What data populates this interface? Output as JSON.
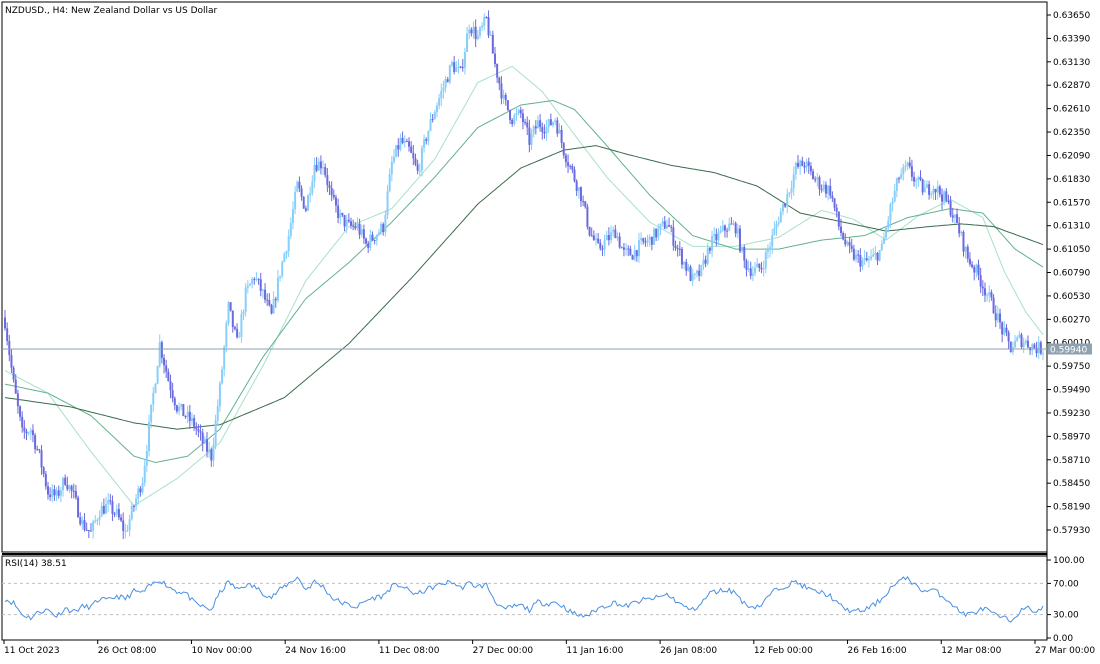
{
  "chart_title": "NZDUSD., H4:  New Zealand Dollar vs US Dollar",
  "current_price_label": "0.59940",
  "rsi_label": "RSI(14) 38.51",
  "colors": {
    "bull_candle": "#87cefa",
    "bear_candle": "#6a6ae0",
    "ma_fast": "#a8e0c8",
    "ma_mid": "#63b08e",
    "ma_slow": "#3a6b4c",
    "rsi_line": "#4a90e2",
    "price_line": "#8fa2b0",
    "axis": "#000000"
  },
  "chart_data": [
    {
      "type": "candlestick",
      "title": "NZDUSD., H4:  New Zealand Dollar vs US Dollar",
      "y_ticks": [
        "0.63650",
        "0.63390",
        "0.63130",
        "0.62870",
        "0.62610",
        "0.62350",
        "0.62090",
        "0.61830",
        "0.61570",
        "0.61310",
        "0.61050",
        "0.60790",
        "0.60530",
        "0.60270",
        "0.60010",
        "0.59750",
        "0.59490",
        "0.59230",
        "0.58970",
        "0.58710",
        "0.58450",
        "0.58190",
        "0.57930"
      ],
      "ylim": [
        0.577,
        0.6376
      ],
      "x_tick_labels": [
        "11 Oct 2023",
        "26 Oct 08:00",
        "10 Nov 00:00",
        "24 Nov 16:00",
        "11 Dec 08:00",
        "27 Dec 00:00",
        "11 Jan 16:00",
        "26 Jan 08:00",
        "12 Feb 00:00",
        "26 Feb 16:00",
        "12 Mar 08:00",
        "27 Mar 00:00"
      ],
      "current_price": 0.5994,
      "close_path": [
        [
          0,
          0.6025
        ],
        [
          4,
          0.5955
        ],
        [
          8,
          0.59
        ],
        [
          12,
          0.5905
        ],
        [
          16,
          0.5875
        ],
        [
          20,
          0.5835
        ],
        [
          24,
          0.583
        ],
        [
          28,
          0.585
        ],
        [
          32,
          0.583
        ],
        [
          36,
          0.58
        ],
        [
          40,
          0.579
        ],
        [
          44,
          0.5815
        ],
        [
          48,
          0.582
        ],
        [
          52,
          0.581
        ],
        [
          56,
          0.579
        ],
        [
          60,
          0.582
        ],
        [
          64,
          0.585
        ],
        [
          68,
          0.5925
        ],
        [
          72,
          0.6
        ],
        [
          76,
          0.596
        ],
        [
          80,
          0.593
        ],
        [
          84,
          0.592
        ],
        [
          88,
          0.591
        ],
        [
          92,
          0.589
        ],
        [
          96,
          0.5875
        ],
        [
          100,
          0.595
        ],
        [
          104,
          0.604
        ],
        [
          108,
          0.6
        ],
        [
          112,
          0.6055
        ],
        [
          116,
          0.6075
        ],
        [
          120,
          0.6055
        ],
        [
          124,
          0.603
        ],
        [
          128,
          0.608
        ],
        [
          132,
          0.612
        ],
        [
          136,
          0.6175
        ],
        [
          140,
          0.615
        ],
        [
          144,
          0.62
        ],
        [
          148,
          0.62
        ],
        [
          152,
          0.616
        ],
        [
          156,
          0.614
        ],
        [
          160,
          0.613
        ],
        [
          164,
          0.613
        ],
        [
          168,
          0.611
        ],
        [
          172,
          0.612
        ],
        [
          176,
          0.613
        ],
        [
          180,
          0.62
        ],
        [
          184,
          0.6225
        ],
        [
          188,
          0.6215
        ],
        [
          192,
          0.619
        ],
        [
          196,
          0.623
        ],
        [
          200,
          0.626
        ],
        [
          204,
          0.6285
        ],
        [
          208,
          0.631
        ],
        [
          212,
          0.63
        ],
        [
          216,
          0.6355
        ],
        [
          220,
          0.634
        ],
        [
          224,
          0.636
        ],
        [
          228,
          0.631
        ],
        [
          232,
          0.627
        ],
        [
          236,
          0.625
        ],
        [
          240,
          0.6255
        ],
        [
          244,
          0.6225
        ],
        [
          248,
          0.6245
        ],
        [
          252,
          0.624
        ],
        [
          256,
          0.625
        ],
        [
          260,
          0.6215
        ],
        [
          264,
          0.619
        ],
        [
          268,
          0.6165
        ],
        [
          272,
          0.6125
        ],
        [
          276,
          0.6105
        ],
        [
          280,
          0.6115
        ],
        [
          284,
          0.6125
        ],
        [
          288,
          0.61
        ],
        [
          292,
          0.61
        ],
        [
          296,
          0.611
        ],
        [
          300,
          0.6115
        ],
        [
          304,
          0.6125
        ],
        [
          308,
          0.6135
        ],
        [
          312,
          0.611
        ],
        [
          316,
          0.609
        ],
        [
          320,
          0.607
        ],
        [
          324,
          0.608
        ],
        [
          328,
          0.611
        ],
        [
          332,
          0.612
        ],
        [
          336,
          0.613
        ],
        [
          340,
          0.613
        ],
        [
          344,
          0.609
        ],
        [
          348,
          0.608
        ],
        [
          352,
          0.6085
        ],
        [
          356,
          0.611
        ],
        [
          360,
          0.614
        ],
        [
          364,
          0.6165
        ],
        [
          368,
          0.6195
        ],
        [
          372,
          0.62
        ],
        [
          376,
          0.6185
        ],
        [
          380,
          0.6175
        ],
        [
          384,
          0.617
        ],
        [
          388,
          0.613
        ],
        [
          392,
          0.6105
        ],
        [
          396,
          0.6095
        ],
        [
          400,
          0.609
        ],
        [
          404,
          0.6095
        ],
        [
          408,
          0.6105
        ],
        [
          412,
          0.615
        ],
        [
          416,
          0.6185
        ],
        [
          420,
          0.6195
        ],
        [
          424,
          0.618
        ],
        [
          428,
          0.617
        ],
        [
          432,
          0.6175
        ],
        [
          436,
          0.6165
        ],
        [
          440,
          0.615
        ],
        [
          444,
          0.6125
        ],
        [
          448,
          0.6095
        ],
        [
          452,
          0.608
        ],
        [
          456,
          0.606
        ],
        [
          460,
          0.604
        ],
        [
          464,
          0.6015
        ],
        [
          468,
          0.5995
        ],
        [
          472,
          0.6005
        ],
        [
          476,
          0.6
        ],
        [
          480,
          0.5995
        ],
        [
          483,
          0.5994
        ]
      ],
      "ma_fast": [
        [
          0,
          0.597
        ],
        [
          20,
          0.5945
        ],
        [
          40,
          0.588
        ],
        [
          60,
          0.582
        ],
        [
          80,
          0.585
        ],
        [
          100,
          0.589
        ],
        [
          120,
          0.5975
        ],
        [
          140,
          0.607
        ],
        [
          160,
          0.613
        ],
        [
          180,
          0.615
        ],
        [
          200,
          0.6205
        ],
        [
          220,
          0.629
        ],
        [
          236,
          0.6308
        ],
        [
          250,
          0.628
        ],
        [
          265,
          0.6232
        ],
        [
          280,
          0.6185
        ],
        [
          300,
          0.6135
        ],
        [
          320,
          0.6108
        ],
        [
          340,
          0.6108
        ],
        [
          360,
          0.6118
        ],
        [
          380,
          0.6148
        ],
        [
          395,
          0.6138
        ],
        [
          410,
          0.6115
        ],
        [
          425,
          0.6142
        ],
        [
          440,
          0.616
        ],
        [
          455,
          0.614
        ],
        [
          465,
          0.608
        ],
        [
          475,
          0.6035
        ],
        [
          483,
          0.601
        ]
      ],
      "ma_mid": [
        [
          0,
          0.5955
        ],
        [
          20,
          0.5945
        ],
        [
          40,
          0.592
        ],
        [
          60,
          0.5875
        ],
        [
          70,
          0.5868
        ],
        [
          85,
          0.5875
        ],
        [
          100,
          0.5905
        ],
        [
          120,
          0.5985
        ],
        [
          140,
          0.605
        ],
        [
          160,
          0.609
        ],
        [
          180,
          0.6135
        ],
        [
          200,
          0.6185
        ],
        [
          220,
          0.624
        ],
        [
          240,
          0.6265
        ],
        [
          255,
          0.627
        ],
        [
          265,
          0.626
        ],
        [
          280,
          0.622
        ],
        [
          300,
          0.6165
        ],
        [
          320,
          0.612
        ],
        [
          340,
          0.6105
        ],
        [
          360,
          0.6105
        ],
        [
          380,
          0.6115
        ],
        [
          400,
          0.612
        ],
        [
          420,
          0.614
        ],
        [
          440,
          0.615
        ],
        [
          455,
          0.6145
        ],
        [
          470,
          0.6105
        ],
        [
          483,
          0.6085
        ]
      ],
      "ma_slow": [
        [
          0,
          0.594
        ],
        [
          30,
          0.593
        ],
        [
          60,
          0.5912
        ],
        [
          80,
          0.5905
        ],
        [
          100,
          0.591
        ],
        [
          130,
          0.594
        ],
        [
          160,
          0.6
        ],
        [
          190,
          0.6075
        ],
        [
          220,
          0.6155
        ],
        [
          240,
          0.6195
        ],
        [
          260,
          0.6215
        ],
        [
          275,
          0.622
        ],
        [
          290,
          0.621
        ],
        [
          310,
          0.6198
        ],
        [
          330,
          0.619
        ],
        [
          350,
          0.6175
        ],
        [
          370,
          0.6145
        ],
        [
          390,
          0.6135
        ],
        [
          410,
          0.6125
        ],
        [
          430,
          0.613
        ],
        [
          445,
          0.6133
        ],
        [
          460,
          0.613
        ],
        [
          483,
          0.611
        ]
      ]
    },
    {
      "type": "line",
      "title": "RSI(14) 38.51",
      "y_ticks": [
        "100.00",
        "70.00",
        "30.00",
        "0.00"
      ],
      "ylim": [
        0,
        100
      ],
      "levels": [
        70,
        30
      ],
      "rsi_path": [
        [
          0,
          50
        ],
        [
          4,
          45
        ],
        [
          8,
          30
        ],
        [
          12,
          26
        ],
        [
          16,
          34
        ],
        [
          20,
          36
        ],
        [
          24,
          28
        ],
        [
          28,
          38
        ],
        [
          32,
          34
        ],
        [
          36,
          40
        ],
        [
          40,
          40
        ],
        [
          44,
          50
        ],
        [
          48,
          48
        ],
        [
          52,
          54
        ],
        [
          56,
          50
        ],
        [
          60,
          60
        ],
        [
          64,
          58
        ],
        [
          68,
          68
        ],
        [
          72,
          75
        ],
        [
          76,
          66
        ],
        [
          80,
          60
        ],
        [
          84,
          58
        ],
        [
          88,
          45
        ],
        [
          92,
          40
        ],
        [
          96,
          36
        ],
        [
          100,
          58
        ],
        [
          104,
          72
        ],
        [
          108,
          62
        ],
        [
          112,
          68
        ],
        [
          116,
          66
        ],
        [
          120,
          58
        ],
        [
          124,
          52
        ],
        [
          128,
          62
        ],
        [
          132,
          70
        ],
        [
          136,
          78
        ],
        [
          140,
          62
        ],
        [
          144,
          72
        ],
        [
          148,
          66
        ],
        [
          152,
          52
        ],
        [
          156,
          46
        ],
        [
          160,
          42
        ],
        [
          164,
          40
        ],
        [
          168,
          48
        ],
        [
          172,
          52
        ],
        [
          176,
          54
        ],
        [
          180,
          66
        ],
        [
          184,
          68
        ],
        [
          188,
          60
        ],
        [
          192,
          56
        ],
        [
          196,
          62
        ],
        [
          200,
          66
        ],
        [
          204,
          70
        ],
        [
          208,
          72
        ],
        [
          212,
          64
        ],
        [
          216,
          70
        ],
        [
          220,
          66
        ],
        [
          224,
          68
        ],
        [
          228,
          48
        ],
        [
          232,
          36
        ],
        [
          236,
          40
        ],
        [
          240,
          42
        ],
        [
          244,
          36
        ],
        [
          248,
          46
        ],
        [
          252,
          44
        ],
        [
          256,
          46
        ],
        [
          260,
          40
        ],
        [
          264,
          32
        ],
        [
          268,
          28
        ],
        [
          272,
          30
        ],
        [
          276,
          38
        ],
        [
          280,
          42
        ],
        [
          284,
          46
        ],
        [
          288,
          40
        ],
        [
          292,
          44
        ],
        [
          296,
          48
        ],
        [
          300,
          50
        ],
        [
          304,
          52
        ],
        [
          308,
          56
        ],
        [
          312,
          48
        ],
        [
          316,
          40
        ],
        [
          320,
          36
        ],
        [
          324,
          44
        ],
        [
          328,
          58
        ],
        [
          332,
          60
        ],
        [
          336,
          62
        ],
        [
          340,
          58
        ],
        [
          344,
          44
        ],
        [
          348,
          40
        ],
        [
          352,
          42
        ],
        [
          356,
          56
        ],
        [
          360,
          64
        ],
        [
          364,
          68
        ],
        [
          368,
          72
        ],
        [
          372,
          66
        ],
        [
          376,
          60
        ],
        [
          380,
          58
        ],
        [
          384,
          54
        ],
        [
          388,
          42
        ],
        [
          392,
          36
        ],
        [
          396,
          34
        ],
        [
          400,
          36
        ],
        [
          404,
          42
        ],
        [
          408,
          50
        ],
        [
          412,
          64
        ],
        [
          416,
          72
        ],
        [
          420,
          78
        ],
        [
          424,
          66
        ],
        [
          428,
          60
        ],
        [
          432,
          62
        ],
        [
          436,
          54
        ],
        [
          440,
          46
        ],
        [
          444,
          34
        ],
        [
          448,
          30
        ],
        [
          452,
          34
        ],
        [
          456,
          38
        ],
        [
          460,
          30
        ],
        [
          464,
          26
        ],
        [
          468,
          22
        ],
        [
          472,
          34
        ],
        [
          476,
          38
        ],
        [
          480,
          34
        ],
        [
          483,
          38.51
        ]
      ]
    }
  ]
}
